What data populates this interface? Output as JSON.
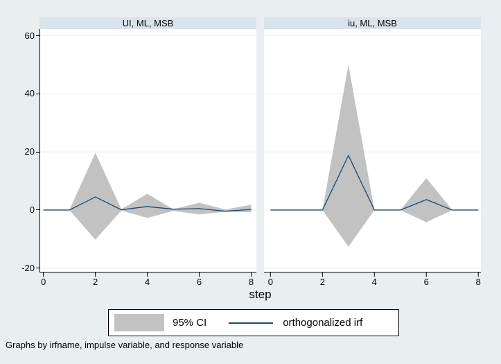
{
  "figure": {
    "xlabel": "step",
    "note": "Graphs by irfname, impulse variable, and response variable",
    "legend": {
      "ci_label": "95% CI",
      "irf_label": "orthogonalized irf"
    }
  },
  "colors": {
    "background": "#e9eff1",
    "strip_background": "#d9e4ea",
    "plot_background": "#ffffff",
    "gridline": "#e4eef0",
    "ci_band": "#c2c2c2",
    "irf_line": "#1a476f",
    "axis": "#000000"
  },
  "chart_data": [
    {
      "type": "area",
      "panel_title": "UI, ML, MSB",
      "x": [
        0,
        1,
        2,
        3,
        4,
        5,
        6,
        7,
        8
      ],
      "series": [
        {
          "name": "95% CI upper",
          "values": [
            0,
            0,
            19.7,
            0.3,
            5.6,
            0.3,
            2.5,
            0.2,
            1.8
          ]
        },
        {
          "name": "95% CI lower",
          "values": [
            0,
            0,
            -10.2,
            -0.2,
            -2.7,
            -0.3,
            -1.5,
            -0.6,
            -0.8
          ]
        },
        {
          "name": "orthogonalized irf",
          "values": [
            0,
            0,
            4.5,
            0.1,
            1.2,
            0.3,
            0.5,
            -0.4,
            0.2
          ]
        }
      ],
      "xticks": [
        0,
        2,
        4,
        6,
        8
      ],
      "yticks": [
        -20,
        0,
        20,
        40,
        60
      ],
      "xlim": [
        -0.15,
        8.2
      ],
      "ylim": [
        -21.5,
        62.3
      ],
      "grid": true,
      "legend_position": "bottom"
    },
    {
      "type": "area",
      "panel_title": "iu, ML, MSB",
      "x": [
        0,
        1,
        2,
        3,
        4,
        5,
        6,
        7,
        8
      ],
      "series": [
        {
          "name": "95% CI upper",
          "values": [
            0,
            0,
            0,
            50,
            0,
            0,
            11,
            0,
            0
          ]
        },
        {
          "name": "95% CI lower",
          "values": [
            0,
            0,
            0,
            -12.6,
            0,
            0,
            -4.2,
            0,
            0
          ]
        },
        {
          "name": "orthogonalized irf",
          "values": [
            0,
            0,
            0,
            18.8,
            0,
            0,
            3.6,
            0,
            0
          ]
        }
      ],
      "xticks": [
        0,
        2,
        4,
        6,
        8
      ],
      "yticks": [
        -20,
        0,
        20,
        40,
        60
      ],
      "xlim": [
        -0.25,
        8.1
      ],
      "ylim": [
        -21.5,
        62.3
      ],
      "grid": true,
      "legend_position": "bottom"
    }
  ]
}
